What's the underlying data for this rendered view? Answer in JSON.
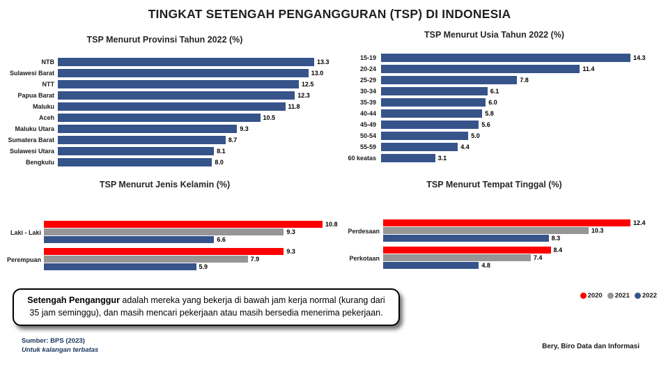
{
  "page": {
    "title": "TINGKAT SETENGAH PENGANGGURAN (TSP) DI INDONESIA"
  },
  "colors": {
    "bar_blue": "#36548A",
    "bar_red": "#FF0000",
    "bar_gray": "#969696",
    "footer_navy": "#17365D"
  },
  "chart_data": [
    {
      "key": "provinsi",
      "type": "bar",
      "title": "TSP Menurut Provinsi Tahun 2022 (%)",
      "categories": [
        "NTB",
        "Sulawesi Barat",
        "NTT",
        "Papua Barat",
        "Maluku",
        "Aceh",
        "Maluku Utara",
        "Sumatera Barat",
        "Sulawesi Utara",
        "Bengkulu"
      ],
      "values": [
        13.3,
        13.0,
        12.5,
        12.3,
        11.8,
        10.5,
        9.3,
        8.7,
        8.1,
        8.0
      ],
      "xlabel": "",
      "ylabel": "",
      "xmax": 13.3,
      "grid": false,
      "bar_color": "#36548A",
      "data_labels": true
    },
    {
      "key": "usia",
      "type": "bar",
      "title": "TSP Menurut Usia Tahun 2022 (%)",
      "categories": [
        "15-19",
        "20-24",
        "25-29",
        "30-34",
        "35-39",
        "40-44",
        "45-49",
        "50-54",
        "55-59",
        "60 keatas"
      ],
      "values": [
        14.3,
        11.4,
        7.8,
        6.1,
        6.0,
        5.8,
        5.6,
        5.0,
        4.4,
        3.1
      ],
      "xlabel": "",
      "ylabel": "",
      "xmax": 14.3,
      "grid": false,
      "bar_color": "#36548A",
      "data_labels": true
    },
    {
      "key": "jenis_kelamin",
      "type": "bar",
      "title": "TSP Menurut Jenis Kelamin (%)",
      "categories": [
        "Laki - Laki",
        "Perempuan"
      ],
      "series": [
        {
          "name": "2020",
          "color": "#FF0000",
          "values": [
            10.8,
            9.3
          ]
        },
        {
          "name": "2021",
          "color": "#969696",
          "values": [
            9.3,
            7.9
          ]
        },
        {
          "name": "2022",
          "color": "#36548A",
          "values": [
            6.6,
            5.9
          ]
        }
      ],
      "xlabel": "",
      "ylabel": "",
      "xmax": 10.8,
      "grid": false,
      "data_labels": true,
      "legend_position": "bottom-right"
    },
    {
      "key": "tempat_tinggal",
      "type": "bar",
      "title": "TSP Menurut Tempat Tinggal (%)",
      "categories": [
        "Perdesaan",
        "Perkotaan"
      ],
      "series": [
        {
          "name": "2020",
          "color": "#FF0000",
          "values": [
            12.4,
            8.4
          ]
        },
        {
          "name": "2021",
          "color": "#969696",
          "values": [
            10.3,
            7.4
          ]
        },
        {
          "name": "2022",
          "color": "#36548A",
          "values": [
            8.3,
            4.8
          ]
        }
      ],
      "xlabel": "",
      "ylabel": "",
      "xmax": 12.4,
      "grid": false,
      "data_labels": true,
      "legend_position": "bottom-right"
    }
  ],
  "legend": {
    "items": [
      {
        "label": "2020",
        "color": "#FF0000"
      },
      {
        "label": "2021",
        "color": "#969696"
      },
      {
        "label": "2022",
        "color": "#36548A"
      }
    ]
  },
  "definition": {
    "term": "Setengah Penganggur",
    "text": " adalah mereka yang bekerja di bawah jam kerja normal (kurang dari 35 jam seminggu), dan masih mencari pekerjaan atau masih bersedia menerima pekerjaan."
  },
  "footer": {
    "source": "Sumber: BPS (2023)",
    "restriction": "Untuk kalangan terbatas",
    "credit": "Bery, Biro Data dan Informasi"
  }
}
